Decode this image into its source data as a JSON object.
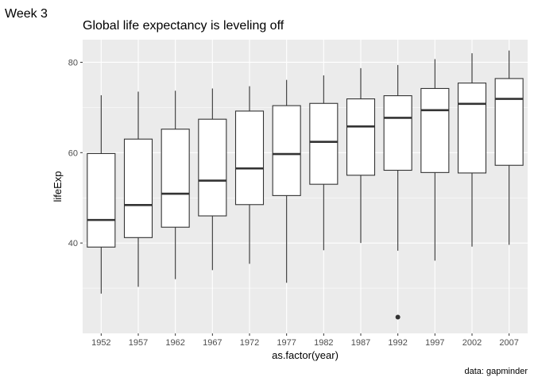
{
  "page_label": "Week 3",
  "chart_data": {
    "type": "box",
    "title": "Global life expectancy is leveling off",
    "xlabel": "as.factor(year)",
    "ylabel": "lifeExp",
    "caption": "data: gapminder",
    "ylim": [
      20,
      85
    ],
    "yticks": [
      40,
      60,
      80
    ],
    "grid": true,
    "categories": [
      "1952",
      "1957",
      "1962",
      "1967",
      "1972",
      "1977",
      "1982",
      "1987",
      "1992",
      "1997",
      "2002",
      "2007"
    ],
    "boxes": [
      {
        "x": "1952",
        "min": 28.8,
        "q1": 39.1,
        "median": 45.1,
        "q3": 59.8,
        "max": 72.7,
        "outliers": []
      },
      {
        "x": "1957",
        "min": 30.3,
        "q1": 41.2,
        "median": 48.4,
        "q3": 63.0,
        "max": 73.5,
        "outliers": []
      },
      {
        "x": "1962",
        "min": 32.0,
        "q1": 43.5,
        "median": 50.9,
        "q3": 65.2,
        "max": 73.7,
        "outliers": []
      },
      {
        "x": "1967",
        "min": 34.0,
        "q1": 46.0,
        "median": 53.8,
        "q3": 67.4,
        "max": 74.2,
        "outliers": []
      },
      {
        "x": "1972",
        "min": 35.4,
        "q1": 48.5,
        "median": 56.5,
        "q3": 69.2,
        "max": 74.7,
        "outliers": []
      },
      {
        "x": "1977",
        "min": 31.2,
        "q1": 50.5,
        "median": 59.7,
        "q3": 70.4,
        "max": 76.1,
        "outliers": []
      },
      {
        "x": "1982",
        "min": 38.4,
        "q1": 53.0,
        "median": 62.4,
        "q3": 70.9,
        "max": 77.1,
        "outliers": []
      },
      {
        "x": "1987",
        "min": 40.0,
        "q1": 55.0,
        "median": 65.8,
        "q3": 71.9,
        "max": 78.7,
        "outliers": []
      },
      {
        "x": "1992",
        "min": 38.3,
        "q1": 56.1,
        "median": 67.7,
        "q3": 72.6,
        "max": 79.4,
        "outliers": [
          23.6
        ]
      },
      {
        "x": "1997",
        "min": 36.1,
        "q1": 55.6,
        "median": 69.4,
        "q3": 74.2,
        "max": 80.7,
        "outliers": []
      },
      {
        "x": "2002",
        "min": 39.2,
        "q1": 55.5,
        "median": 70.8,
        "q3": 75.4,
        "max": 82.0,
        "outliers": []
      },
      {
        "x": "2007",
        "min": 39.6,
        "q1": 57.2,
        "median": 71.9,
        "q3": 76.4,
        "max": 82.6,
        "outliers": []
      }
    ],
    "colors": {
      "panel": "#ebebeb",
      "grid_major": "#ffffff",
      "box_fill": "#ffffff",
      "box_line": "#333333"
    }
  }
}
